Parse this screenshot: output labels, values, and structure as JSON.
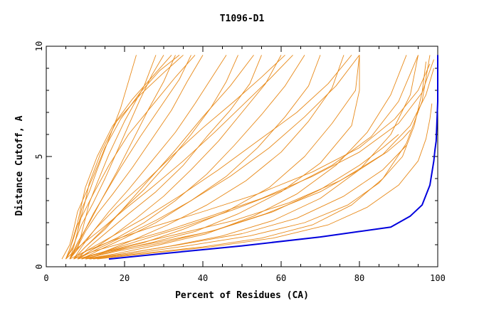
{
  "chart_data": {
    "type": "line",
    "title": "T1096-D1",
    "xlabel": "Percent of Residues (CA)",
    "ylabel": "Distance Cutoff, A",
    "xlim": [
      0,
      100
    ],
    "ylim": [
      0,
      10
    ],
    "x_ticks": [
      "0",
      "20",
      "40",
      "60",
      "80",
      "100"
    ],
    "y_ticks": [
      "0",
      "5",
      "10"
    ],
    "grid": false,
    "colors": {
      "models": "#e88a1a",
      "reference": "#0000dd"
    },
    "series": [
      {
        "color": "#0000dd",
        "x": [
          16,
          30,
          50,
          70,
          80,
          88,
          93,
          96,
          98,
          99,
          99.3,
          99.6,
          100,
          100
        ],
        "y": [
          0.35,
          0.6,
          0.95,
          1.35,
          1.6,
          1.8,
          2.3,
          2.8,
          3.7,
          4.8,
          5.3,
          5.7,
          7.5,
          9.6
        ]
      },
      {
        "color": "#e88a1a",
        "x": [
          5,
          6,
          7,
          8,
          9,
          10,
          13,
          17,
          22,
          27,
          32
        ],
        "y": [
          0.35,
          0.8,
          1.4,
          2.0,
          2.8,
          3.6,
          5.0,
          6.4,
          7.6,
          8.6,
          9.6
        ]
      },
      {
        "color": "#e88a1a",
        "x": [
          6,
          7,
          8,
          9,
          10,
          11,
          14,
          18,
          24,
          30,
          35
        ],
        "y": [
          0.35,
          0.9,
          1.6,
          2.3,
          3.0,
          3.8,
          5.2,
          6.6,
          7.8,
          8.8,
          9.6
        ]
      },
      {
        "color": "#e88a1a",
        "x": [
          4,
          6,
          7,
          8,
          10,
          12,
          15,
          19,
          24,
          29,
          34
        ],
        "y": [
          0.35,
          1.0,
          1.7,
          2.5,
          3.3,
          4.1,
          5.4,
          6.7,
          7.9,
          8.9,
          9.6
        ]
      },
      {
        "color": "#e88a1a",
        "x": [
          6,
          8,
          9,
          10,
          11,
          13,
          16,
          20,
          25,
          28
        ],
        "y": [
          0.35,
          0.8,
          1.5,
          2.2,
          2.9,
          3.8,
          5.1,
          6.6,
          8.2,
          9.6
        ]
      },
      {
        "color": "#e88a1a",
        "x": [
          5,
          7,
          8,
          9,
          11,
          13,
          16,
          19,
          21,
          23
        ],
        "y": [
          0.35,
          0.9,
          1.6,
          2.6,
          3.4,
          4.4,
          5.8,
          7.2,
          8.4,
          9.6
        ]
      },
      {
        "color": "#e88a1a",
        "x": [
          5,
          6,
          7,
          8,
          10,
          12,
          16,
          21,
          27,
          33,
          38
        ],
        "y": [
          0.35,
          0.8,
          1.3,
          1.9,
          2.6,
          3.3,
          4.6,
          6.0,
          7.3,
          8.6,
          9.6
        ]
      },
      {
        "color": "#e88a1a",
        "x": [
          6,
          8,
          10,
          12,
          15,
          19,
          24,
          29,
          34,
          37
        ],
        "y": [
          0.35,
          1.0,
          1.7,
          2.4,
          3.3,
          4.5,
          5.9,
          7.2,
          8.5,
          9.6
        ]
      },
      {
        "color": "#e88a1a",
        "x": [
          6,
          8,
          10,
          13,
          17,
          22,
          27,
          32,
          36,
          40
        ],
        "y": [
          0.35,
          0.9,
          1.6,
          2.4,
          3.3,
          4.5,
          5.8,
          7.1,
          8.4,
          9.6
        ]
      },
      {
        "color": "#e88a1a",
        "x": [
          7,
          9,
          12,
          16,
          21,
          27,
          33,
          38,
          42,
          46
        ],
        "y": [
          0.35,
          0.9,
          1.6,
          2.5,
          3.5,
          4.8,
          6.1,
          7.4,
          8.5,
          9.6
        ]
      },
      {
        "color": "#e88a1a",
        "x": [
          7,
          10,
          14,
          19,
          25,
          31,
          37,
          42,
          46,
          49
        ],
        "y": [
          0.35,
          0.9,
          1.6,
          2.5,
          3.5,
          4.7,
          6.0,
          7.2,
          8.4,
          9.6
        ]
      },
      {
        "color": "#e88a1a",
        "x": [
          8,
          11,
          15,
          21,
          28,
          35,
          41,
          47,
          52,
          55
        ],
        "y": [
          0.35,
          0.9,
          1.5,
          2.4,
          3.4,
          4.6,
          5.9,
          7.1,
          8.3,
          9.6
        ]
      },
      {
        "color": "#e88a1a",
        "x": [
          8,
          12,
          17,
          23,
          30,
          37,
          44,
          50,
          56,
          60
        ],
        "y": [
          0.35,
          0.8,
          1.4,
          2.2,
          3.2,
          4.4,
          5.7,
          7.0,
          8.3,
          9.6
        ]
      },
      {
        "color": "#e88a1a",
        "x": [
          8,
          12,
          18,
          25,
          33,
          41,
          48,
          55,
          61,
          66
        ],
        "y": [
          0.35,
          0.8,
          1.3,
          2.0,
          3.0,
          4.2,
          5.5,
          6.9,
          8.2,
          9.6
        ]
      },
      {
        "color": "#e88a1a",
        "x": [
          9,
          14,
          20,
          28,
          37,
          46,
          54,
          61,
          67,
          70
        ],
        "y": [
          0.35,
          0.8,
          1.3,
          2.0,
          3.0,
          4.1,
          5.4,
          6.8,
          8.2,
          9.6
        ]
      },
      {
        "color": "#e88a1a",
        "x": [
          9,
          15,
          22,
          31,
          41,
          51,
          60,
          67,
          73,
          76
        ],
        "y": [
          0.35,
          0.7,
          1.2,
          1.9,
          2.8,
          3.9,
          5.2,
          6.6,
          8.1,
          9.6
        ]
      },
      {
        "color": "#e88a1a",
        "x": [
          10,
          16,
          25,
          35,
          46,
          57,
          66,
          73,
          79,
          80
        ],
        "y": [
          0.35,
          0.7,
          1.1,
          1.7,
          2.5,
          3.6,
          5.0,
          6.5,
          8.0,
          9.6
        ]
      },
      {
        "color": "#e88a1a",
        "x": [
          10,
          17,
          27,
          38,
          49,
          60,
          70,
          78,
          80,
          80
        ],
        "y": [
          0.35,
          0.7,
          1.1,
          1.6,
          2.4,
          3.4,
          4.7,
          6.4,
          8.0,
          9.6
        ]
      },
      {
        "color": "#e88a1a",
        "x": [
          10,
          18,
          29,
          41,
          53,
          64,
          74,
          82,
          88,
          92
        ],
        "y": [
          0.35,
          0.6,
          1.0,
          1.5,
          2.3,
          3.3,
          4.6,
          6.1,
          7.8,
          9.6
        ]
      },
      {
        "color": "#e88a1a",
        "x": [
          11,
          20,
          32,
          45,
          58,
          70,
          80,
          88,
          93,
          95
        ],
        "y": [
          0.35,
          0.6,
          0.95,
          1.4,
          2.1,
          3.1,
          4.4,
          6.0,
          7.8,
          9.6
        ]
      },
      {
        "color": "#e88a1a",
        "x": [
          5,
          9,
          14,
          20,
          27,
          35,
          43,
          50,
          57,
          63
        ],
        "y": [
          0.35,
          1.0,
          1.7,
          2.6,
          3.6,
          4.8,
          6.1,
          7.3,
          8.5,
          9.6
        ]
      },
      {
        "color": "#e88a1a",
        "x": [
          6,
          9,
          13,
          18,
          25,
          32,
          40,
          48,
          55,
          61
        ],
        "y": [
          0.35,
          1.0,
          1.8,
          2.7,
          3.8,
          5.0,
          6.3,
          7.5,
          8.6,
          9.6
        ]
      },
      {
        "color": "#e88a1a",
        "x": [
          7,
          11,
          17,
          25,
          34,
          44,
          54,
          64,
          72,
          78
        ],
        "y": [
          0.35,
          0.8,
          1.4,
          2.2,
          3.2,
          4.4,
          5.7,
          7.0,
          8.3,
          9.6
        ]
      },
      {
        "color": "#e88a1a",
        "x": [
          12,
          24,
          40,
          55,
          68,
          78,
          86,
          92,
          96,
          98
        ],
        "y": [
          0.35,
          0.6,
          0.9,
          1.3,
          1.9,
          2.8,
          4.0,
          5.6,
          7.5,
          9.6
        ]
      },
      {
        "color": "#e88a1a",
        "x": [
          9,
          18,
          30,
          44,
          58,
          70,
          80,
          86,
          90
        ],
        "y": [
          0.35,
          0.7,
          1.1,
          1.7,
          2.5,
          3.5,
          4.6,
          5.4,
          6.0
        ]
      },
      {
        "color": "#e88a1a",
        "x": [
          8,
          16,
          28,
          42,
          56,
          70,
          80,
          87,
          91,
          93
        ],
        "y": [
          0.35,
          0.7,
          1.1,
          1.6,
          2.4,
          3.4,
          4.4,
          5.2,
          5.8,
          6.2
        ]
      },
      {
        "color": "#e88a1a",
        "x": [
          10,
          20,
          34,
          50,
          64,
          76,
          86,
          92
        ],
        "y": [
          0.35,
          0.6,
          1.0,
          1.5,
          2.2,
          3.2,
          4.4,
          5.5
        ]
      },
      {
        "color": "#e88a1a",
        "x": [
          7,
          12,
          20,
          30,
          42,
          55,
          68,
          80,
          90,
          96,
          99
        ],
        "y": [
          0.35,
          0.7,
          1.1,
          1.6,
          2.3,
          3.1,
          4.1,
          5.2,
          6.5,
          7.9,
          9.4
        ]
      },
      {
        "color": "#e88a1a",
        "x": [
          8,
          13,
          22,
          34,
          48,
          62,
          75,
          86,
          93,
          97,
          99
        ],
        "y": [
          0.35,
          0.6,
          1.0,
          1.5,
          2.1,
          2.9,
          3.9,
          5.1,
          6.4,
          7.8,
          9.0
        ]
      },
      {
        "color": "#e88a1a",
        "x": [
          6,
          10,
          17,
          27,
          40,
          54,
          68,
          80,
          89,
          95,
          98
        ],
        "y": [
          0.35,
          0.7,
          1.2,
          1.8,
          2.5,
          3.3,
          4.3,
          5.4,
          6.7,
          8.0,
          9.2
        ]
      },
      {
        "color": "#e88a1a",
        "x": [
          7,
          10,
          15,
          20,
          26,
          33,
          40,
          47,
          53
        ],
        "y": [
          0.35,
          0.9,
          1.7,
          2.7,
          3.9,
          5.3,
          6.8,
          8.2,
          9.6
        ]
      },
      {
        "color": "#e88a1a",
        "x": [
          8,
          13,
          20,
          28,
          37,
          47,
          57,
          66,
          74,
          80
        ],
        "y": [
          0.35,
          0.8,
          1.4,
          2.1,
          3.0,
          4.1,
          5.4,
          6.8,
          8.2,
          9.6
        ]
      },
      {
        "color": "#e88a1a",
        "x": [
          6,
          8,
          11,
          14,
          18,
          22,
          26,
          30,
          33
        ],
        "y": [
          0.35,
          1.1,
          2.0,
          3.0,
          4.3,
          5.7,
          7.1,
          8.4,
          9.6
        ]
      },
      {
        "color": "#e88a1a",
        "x": [
          5,
          7,
          9,
          12,
          15,
          18,
          21,
          24,
          27,
          30
        ],
        "y": [
          0.35,
          1.0,
          1.9,
          2.9,
          4.0,
          5.2,
          6.4,
          7.6,
          8.7,
          9.6
        ]
      },
      {
        "color": "#e88a1a",
        "x": [
          9,
          15,
          24,
          35,
          48,
          61,
          73,
          83,
          90,
          95
        ],
        "y": [
          0.35,
          0.7,
          1.2,
          1.8,
          2.6,
          3.5,
          4.6,
          5.9,
          7.5,
          9.6
        ]
      },
      {
        "color": "#e88a1a",
        "x": [
          11,
          22,
          36,
          52,
          66,
          77,
          85,
          91,
          94,
          96,
          97
        ],
        "y": [
          0.35,
          0.6,
          0.95,
          1.4,
          2.0,
          2.8,
          3.8,
          5.0,
          6.4,
          7.9,
          9.3
        ]
      },
      {
        "color": "#e88a1a",
        "x": [
          13,
          26,
          42,
          58,
          72,
          82,
          90,
          95,
          97,
          98,
          98.5
        ],
        "y": [
          0.35,
          0.6,
          0.9,
          1.3,
          1.9,
          2.7,
          3.7,
          4.8,
          5.8,
          6.7,
          7.4
        ]
      }
    ]
  }
}
